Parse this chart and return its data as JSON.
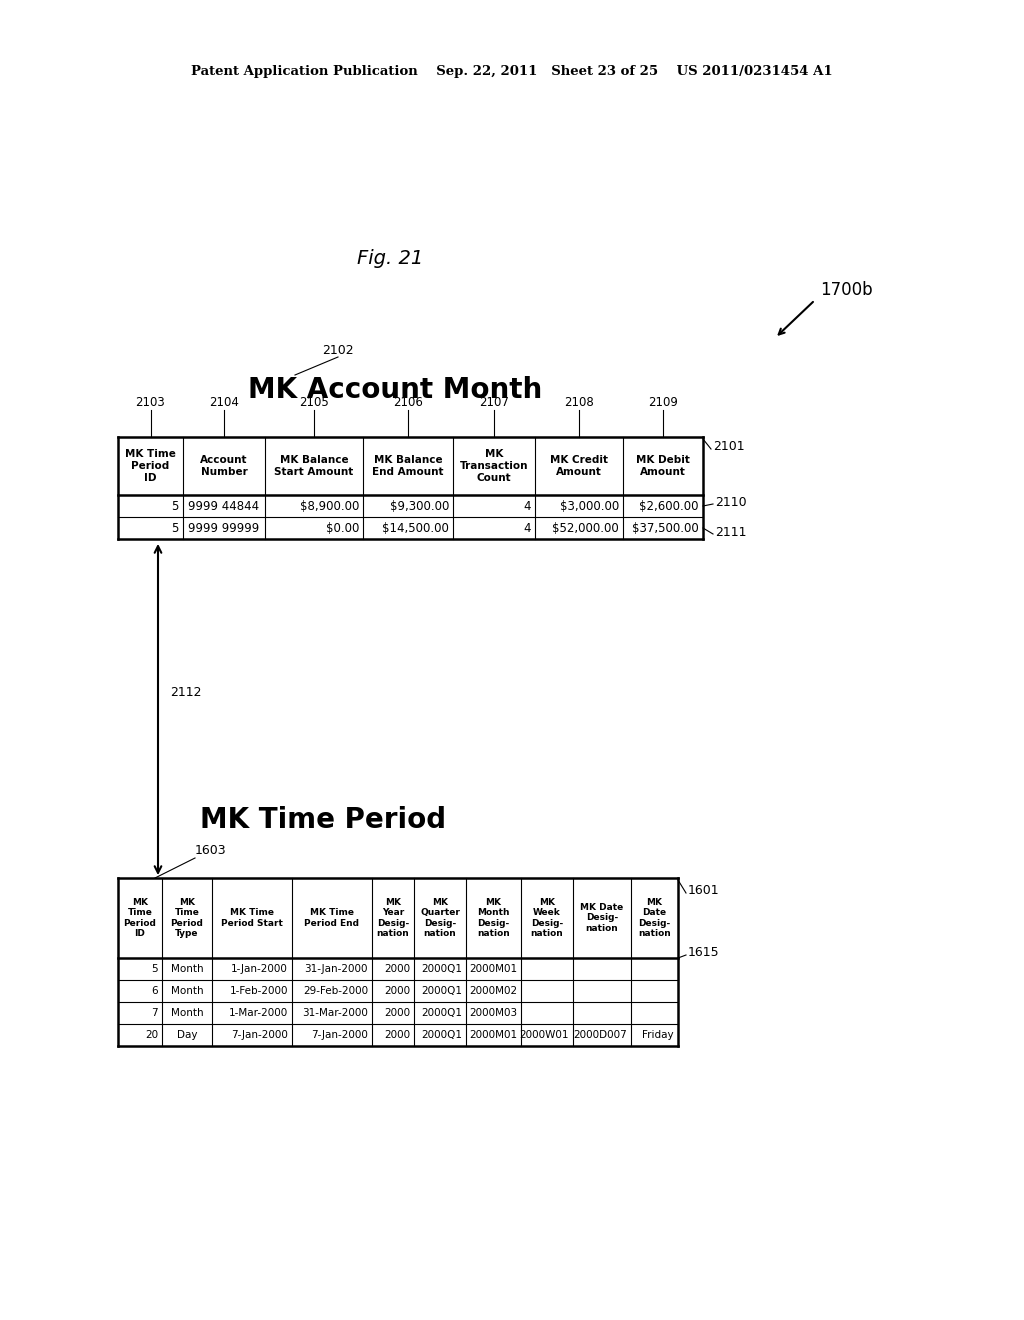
{
  "header_text": "Patent Application Publication    Sep. 22, 2011   Sheet 23 of 25    US 2011/0231454 A1",
  "fig_label": "Fig. 21",
  "label_1700b": "1700b",
  "label_2101": "2101",
  "label_2102": "2102",
  "label_2103": "2103",
  "label_2104": "2104",
  "label_2105": "2105",
  "label_2106": "2106",
  "label_2107": "2107",
  "label_2108": "2108",
  "label_2109": "2109",
  "label_2110": "2110",
  "label_2111": "2111",
  "label_2112": "2112",
  "label_1601": "1601",
  "label_1603": "1603",
  "label_1615": "1615",
  "table1_title": "MK Account Month",
  "table2_title": "MK Time Period",
  "table1_headers": [
    "MK Time\nPeriod\nID",
    "Account\nNumber",
    "MK Balance\nStart Amount",
    "MK Balance\nEnd Amount",
    "MK\nTransaction\nCount",
    "MK Credit\nAmount",
    "MK Debit\nAmount"
  ],
  "table1_rows": [
    [
      "5",
      "9999 44844",
      "$8,900.00",
      "$9,300.00",
      "4",
      "$3,000.00",
      "$2,600.00"
    ],
    [
      "5",
      "9999 99999",
      "$0.00",
      "$14,500.00",
      "4",
      "$52,000.00",
      "$37,500.00"
    ]
  ],
  "table2_headers": [
    "MK\nTime\nPeriod\nID",
    "MK\nTime\nPeriod\nType",
    "MK Time\nPeriod Start",
    "MK Time\nPeriod End",
    "MK\nYear\nDesig-\nnation",
    "MK\nQuarter\nDesig-\nnation",
    "MK\nMonth\nDesig-\nnation",
    "MK\nWeek\nDesig-\nnation",
    "MK Date\nDesig-\nnation",
    "MK\nDate\nDesig-\nnation"
  ],
  "table2_rows": [
    [
      "5",
      "Month",
      "1-Jan-2000",
      "31-Jan-2000",
      "2000",
      "2000Q1",
      "2000M01",
      "",
      "",
      ""
    ],
    [
      "6",
      "Month",
      "1-Feb-2000",
      "29-Feb-2000",
      "2000",
      "2000Q1",
      "2000M02",
      "",
      "",
      ""
    ],
    [
      "7",
      "Month",
      "1-Mar-2000",
      "31-Mar-2000",
      "2000",
      "2000Q1",
      "2000M03",
      "",
      "",
      ""
    ],
    [
      "20",
      "Day",
      "7-Jan-2000",
      "7-Jan-2000",
      "2000",
      "2000Q1",
      "2000M01",
      "2000W01",
      "2000D007",
      "Friday"
    ]
  ],
  "bg_color": "#ffffff",
  "text_color": "#000000"
}
